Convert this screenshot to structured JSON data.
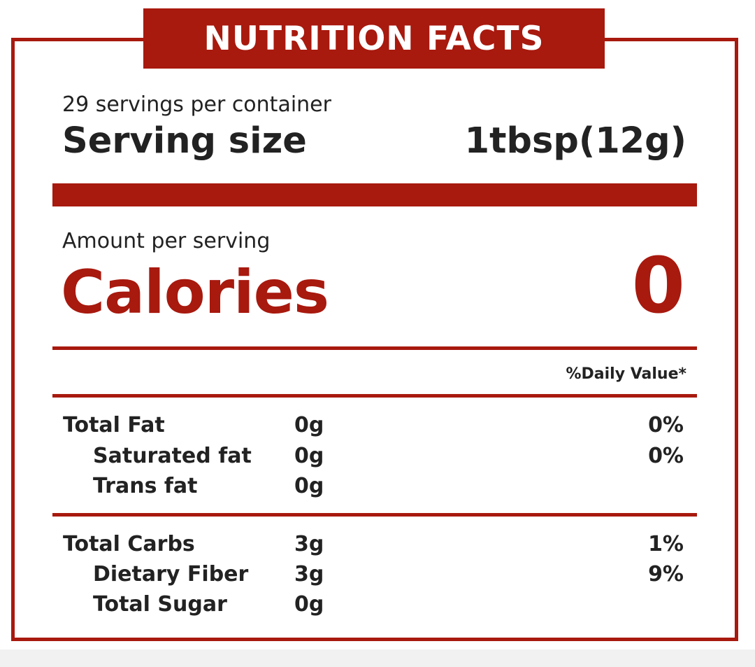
{
  "label": {
    "title": "NUTRITION FACTS",
    "servings_per_container": "29 servings per container",
    "serving_size_label": "Serving size",
    "serving_size_value": "1tbsp(12g)",
    "amount_per_serving": "Amount per serving",
    "calories_label": "Calories",
    "calories_value": "0",
    "daily_value_header": "%Daily Value*",
    "fat_group": [
      {
        "name": "Total Fat",
        "amount": "0g",
        "dv": "0%"
      },
      {
        "name": "Saturated fat",
        "amount": "0g",
        "dv": "0%"
      },
      {
        "name": "Trans fat",
        "amount": "0g",
        "dv": ""
      }
    ],
    "carb_group": [
      {
        "name": "Total Carbs",
        "amount": "3g",
        "dv": "1%"
      },
      {
        "name": "Dietary Fiber",
        "amount": "3g",
        "dv": "9%"
      },
      {
        "name": "Total Sugar",
        "amount": "0g",
        "dv": ""
      }
    ]
  },
  "colors": {
    "accent": "#a8190e",
    "text": "#222222"
  }
}
